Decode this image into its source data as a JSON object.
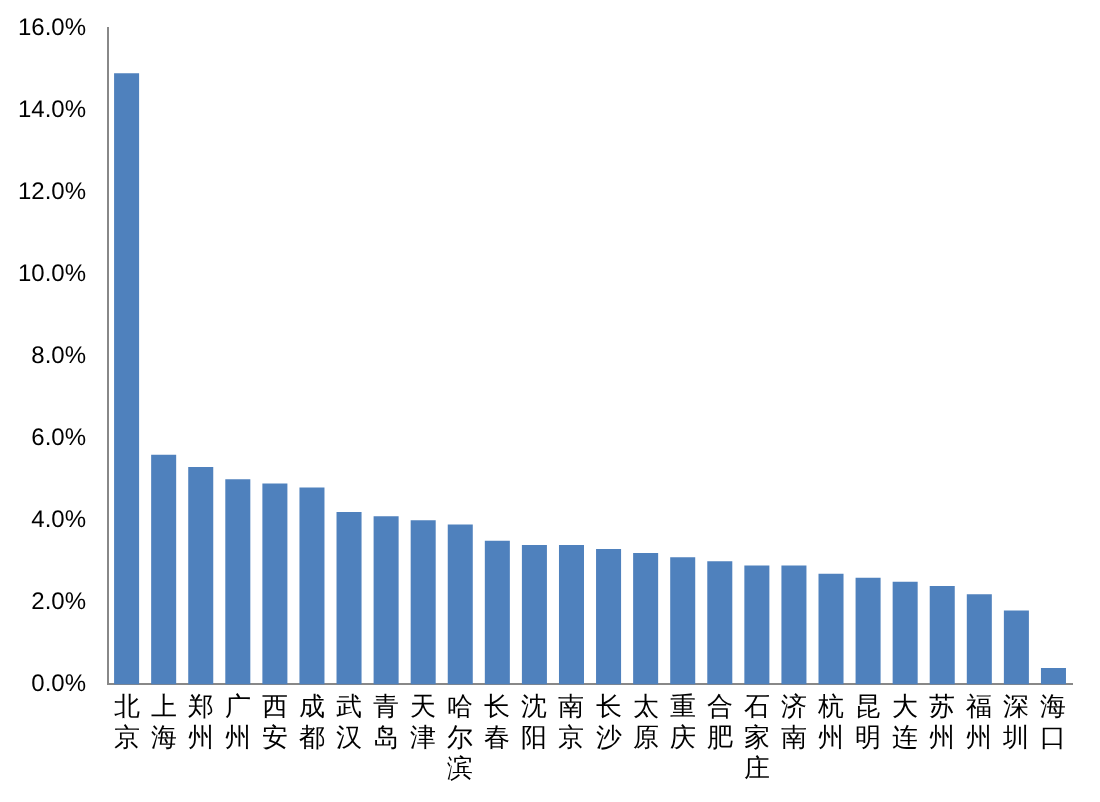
{
  "chart_data": {
    "type": "bar",
    "categories": [
      "北京",
      "上海",
      "郑州",
      "广州",
      "西安",
      "成都",
      "武汉",
      "青岛",
      "天津",
      "哈尔滨",
      "长春",
      "沈阳",
      "南京",
      "长沙",
      "太原",
      "重庆",
      "合肥",
      "石家庄",
      "济南",
      "杭州",
      "昆明",
      "大连",
      "苏州",
      "福州",
      "深圳",
      "海口"
    ],
    "values": [
      14.9,
      5.6,
      5.3,
      5.0,
      4.9,
      4.8,
      4.2,
      4.1,
      4.0,
      3.9,
      3.5,
      3.4,
      3.4,
      3.3,
      3.2,
      3.1,
      3.0,
      2.9,
      2.9,
      2.7,
      2.6,
      2.5,
      2.4,
      2.2,
      1.8,
      0.4
    ],
    "color": "#4f81bd",
    "ylim": [
      0,
      16
    ],
    "yticks": [
      {
        "value": 0,
        "label": "0.0%"
      },
      {
        "value": 2,
        "label": "2.0%"
      },
      {
        "value": 4,
        "label": "4.0%"
      },
      {
        "value": 6,
        "label": "6.0%"
      },
      {
        "value": 8,
        "label": "8.0%"
      },
      {
        "value": 10,
        "label": "10.0%"
      },
      {
        "value": 12,
        "label": "12.0%"
      },
      {
        "value": 14,
        "label": "14.0%"
      },
      {
        "value": 16,
        "label": "16.0%"
      }
    ],
    "grid": false,
    "legend": false
  }
}
